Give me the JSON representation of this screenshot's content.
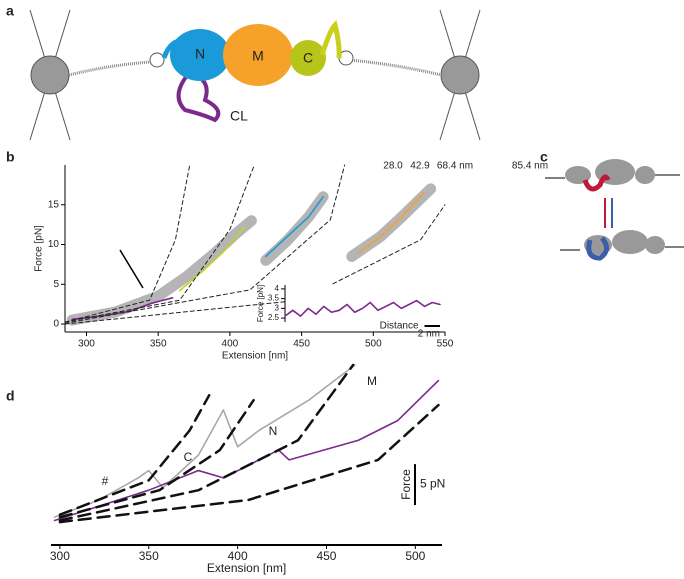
{
  "panels": [
    "a",
    "b",
    "c",
    "d"
  ],
  "diagram_a": {
    "domains": [
      "N",
      "M",
      "C"
    ],
    "linker": "CL"
  },
  "chart_data": [
    {
      "type": "line",
      "xlabel": "Extension [nm]",
      "ylabel": "Force [pN]",
      "xlim": [
        285,
        550
      ],
      "xticks": [
        300,
        350,
        400,
        450,
        500,
        550
      ],
      "ylim": [
        -1,
        20
      ],
      "yticks": [
        0,
        5,
        10,
        15
      ],
      "annotations": [
        "28.0",
        "42.9",
        "68.4 nm",
        "85.4 nm"
      ],
      "series": [
        {
          "color": "#a8a8a8",
          "style": "band",
          "x": [
            290,
            320,
            350,
            370,
            390,
            405,
            415
          ],
          "values": [
            0.5,
            1.5,
            3.5,
            6,
            9,
            11.5,
            13
          ]
        },
        {
          "color": "#a8a8a8",
          "style": "band",
          "x": [
            425,
            440,
            455,
            465
          ],
          "values": [
            8,
            10.5,
            13.5,
            16
          ]
        },
        {
          "color": "#a8a8a8",
          "style": "band",
          "x": [
            485,
            505,
            520,
            540
          ],
          "values": [
            8.5,
            11,
            13.5,
            17
          ]
        },
        {
          "color": "#7b2a8c",
          "style": "line",
          "x": [
            290,
            310,
            330,
            345,
            360
          ],
          "values": [
            0.6,
            1,
            1.6,
            2.6,
            3.3
          ]
        },
        {
          "color": "#c9cf1c",
          "style": "line",
          "x": [
            365,
            380,
            395,
            410
          ],
          "values": [
            4.2,
            6.5,
            9,
            12.2
          ]
        },
        {
          "color": "#1a9ad8",
          "style": "line",
          "x": [
            425,
            440,
            455,
            465
          ],
          "values": [
            8.5,
            11,
            13.5,
            16
          ]
        },
        {
          "color": "#f5a12a",
          "style": "line",
          "x": [
            490,
            505,
            520,
            535
          ],
          "values": [
            9,
            11,
            13.5,
            16.5
          ]
        },
        {
          "color": "#222222",
          "style": "dashed",
          "x": [
            285,
            344,
            362,
            372
          ],
          "values": [
            0.25,
            3,
            10.6,
            20
          ]
        },
        {
          "color": "#222222",
          "style": "dashed",
          "x": [
            285,
            365,
            400,
            417
          ],
          "values": [
            0.25,
            3,
            11.9,
            20
          ]
        },
        {
          "color": "#222222",
          "style": "dashed",
          "x": [
            285,
            414,
            470,
            480
          ],
          "values": [
            0.1,
            4.3,
            13.1,
            20
          ]
        },
        {
          "color": "#222222",
          "style": "dashed",
          "x": [
            285,
            449,
            533,
            550
          ],
          "values": [
            0,
            3,
            10.6,
            15
          ]
        }
      ]
    },
    {
      "type": "line",
      "ylabel": "Force [pN]",
      "xlabel": "Distance",
      "xlim": [
        0,
        20
      ],
      "ylim": [
        2.3,
        4.2
      ],
      "yticks": [
        2.5,
        3.0,
        3.5,
        4.0
      ],
      "scalebar": {
        "value": 2,
        "label": "2 nm"
      },
      "series": [
        {
          "color": "#7b2a8c",
          "style": "line",
          "x": [
            0,
            1,
            2,
            3,
            4,
            5,
            6,
            7,
            8,
            9,
            10,
            11,
            12,
            13,
            14,
            15,
            16,
            17,
            18,
            19,
            20
          ],
          "values": [
            2.6,
            2.9,
            2.6,
            3.0,
            2.7,
            3.1,
            2.8,
            2.9,
            3.2,
            2.8,
            3.0,
            3.3,
            2.9,
            3.1,
            3.3,
            3.0,
            3.2,
            3.4,
            3.1,
            3.3,
            3.2
          ]
        }
      ]
    },
    {
      "type": "line",
      "xlabel": "Extension [nm]",
      "xlim": [
        295,
        515
      ],
      "xticks": [
        300,
        350,
        400,
        450,
        500
      ],
      "ylim": [
        0,
        22
      ],
      "annotations": [
        "#",
        "C",
        "N",
        "M"
      ],
      "scalebar": {
        "value": 5,
        "label": "5 pN",
        "title": "Force"
      },
      "series": [
        {
          "color": "#a8a8a8",
          "style": "line",
          "x": [
            297,
            322,
            344,
            350,
            358,
            378,
            392,
            400,
            412,
            440,
            466
          ],
          "values": [
            3.4,
            5.5,
            8.2,
            9.1,
            7,
            11,
            16.5,
            12,
            14,
            17.7,
            22
          ]
        },
        {
          "color": "#7b2a8c",
          "style": "line",
          "x": [
            297,
            350,
            378,
            392,
            423,
            429,
            468,
            490,
            513
          ],
          "values": [
            3,
            6.7,
            9.1,
            8.2,
            11.6,
            10.4,
            12.8,
            15.2,
            20.1
          ]
        },
        {
          "color": "#111111",
          "style": "bigdash",
          "x": [
            300,
            350,
            373,
            384
          ],
          "values": [
            3.7,
            7.9,
            14,
            18.3
          ]
        },
        {
          "color": "#111111",
          "style": "bigdash",
          "x": [
            300,
            356,
            390,
            409
          ],
          "values": [
            3.4,
            6.7,
            11.6,
            17.7
          ]
        },
        {
          "color": "#111111",
          "style": "bigdash",
          "x": [
            300,
            378,
            434,
            465
          ],
          "values": [
            3,
            6.7,
            12.8,
            22
          ]
        },
        {
          "color": "#111111",
          "style": "bigdash",
          "x": [
            300,
            406,
            479,
            513
          ],
          "values": [
            2.8,
            5.5,
            10.4,
            17.1
          ]
        }
      ]
    }
  ]
}
